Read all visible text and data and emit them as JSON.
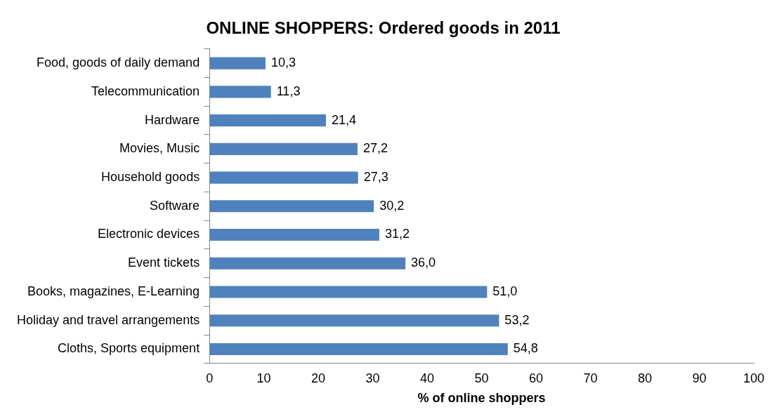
{
  "chart_data": {
    "type": "bar",
    "orientation": "horizontal",
    "title": "ONLINE SHOPPERS: Ordered goods in 2011",
    "xlabel": "% of online shoppers",
    "categories": [
      "Food, goods of daily demand",
      "Telecommunication",
      "Hardware",
      "Movies, Music",
      "Household goods",
      "Software",
      "Electronic devices",
      "Event tickets",
      "Books, magazines, E-Learning",
      "Holiday and travel arrangements",
      "Cloths, Sports equipment"
    ],
    "values": [
      10.3,
      11.3,
      21.4,
      27.2,
      27.3,
      30.2,
      31.2,
      36.0,
      51.0,
      53.2,
      54.8
    ],
    "value_labels": [
      "10,3",
      "11,3",
      "21,4",
      "27,2",
      "27,3",
      "30,2",
      "31,2",
      "36,0",
      "51,0",
      "53,2",
      "54,8"
    ],
    "color": "#4f81bd",
    "xlim": [
      0,
      100
    ],
    "xticks": [
      0,
      10,
      20,
      30,
      40,
      50,
      60,
      70,
      80,
      90,
      100
    ],
    "grid": false,
    "legend": false
  }
}
